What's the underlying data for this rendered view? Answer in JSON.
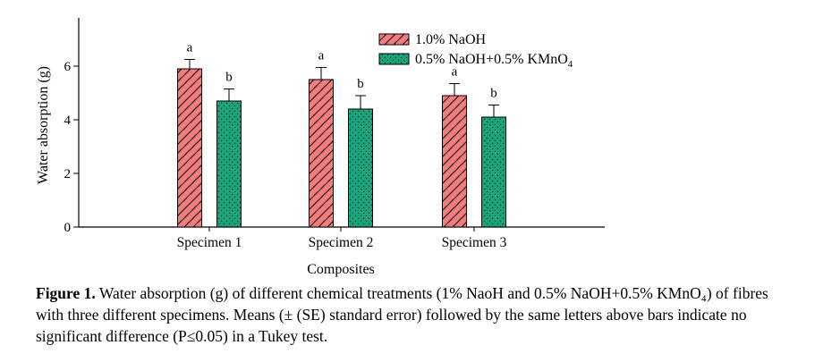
{
  "chart_data": {
    "type": "bar",
    "categories": [
      "Specimen 1",
      "Specimen 2",
      "Specimen 3"
    ],
    "series": [
      {
        "name": "1.0% NaOH",
        "values": [
          5.9,
          5.5,
          4.9
        ],
        "errors": [
          0.35,
          0.45,
          0.45
        ],
        "letters": [
          "a",
          "a",
          "a"
        ],
        "color": "#f47c7c",
        "pattern": "diagonal-hatch"
      },
      {
        "name": "0.5% NaOH+0.5% KMnO4",
        "name_parts": {
          "base": "0.5% NaOH+0.5% KMnO",
          "sub": "4"
        },
        "values": [
          4.7,
          4.4,
          4.1
        ],
        "errors": [
          0.45,
          0.5,
          0.45
        ],
        "letters": [
          "b",
          "b",
          "b"
        ],
        "color": "#1ca37a",
        "pattern": "dots"
      }
    ],
    "xlabel": "Composites",
    "ylabel": "Water absorption (g)",
    "ylim": [
      0,
      7.8
    ],
    "yticks": [
      0,
      2,
      4,
      6
    ],
    "grid": false,
    "legend": "top-right"
  },
  "caption": {
    "label": "Figure 1.",
    "text": "Water absorption (g) of different chemical treatments (1% NaoH and 0.5% NaOH+0.5% KMnO₄) of fibres with three different specimens. Means (± (SE) standard error) followed by the same letters above bars indicate no significant difference (P≤0.05) in a Tukey test."
  }
}
